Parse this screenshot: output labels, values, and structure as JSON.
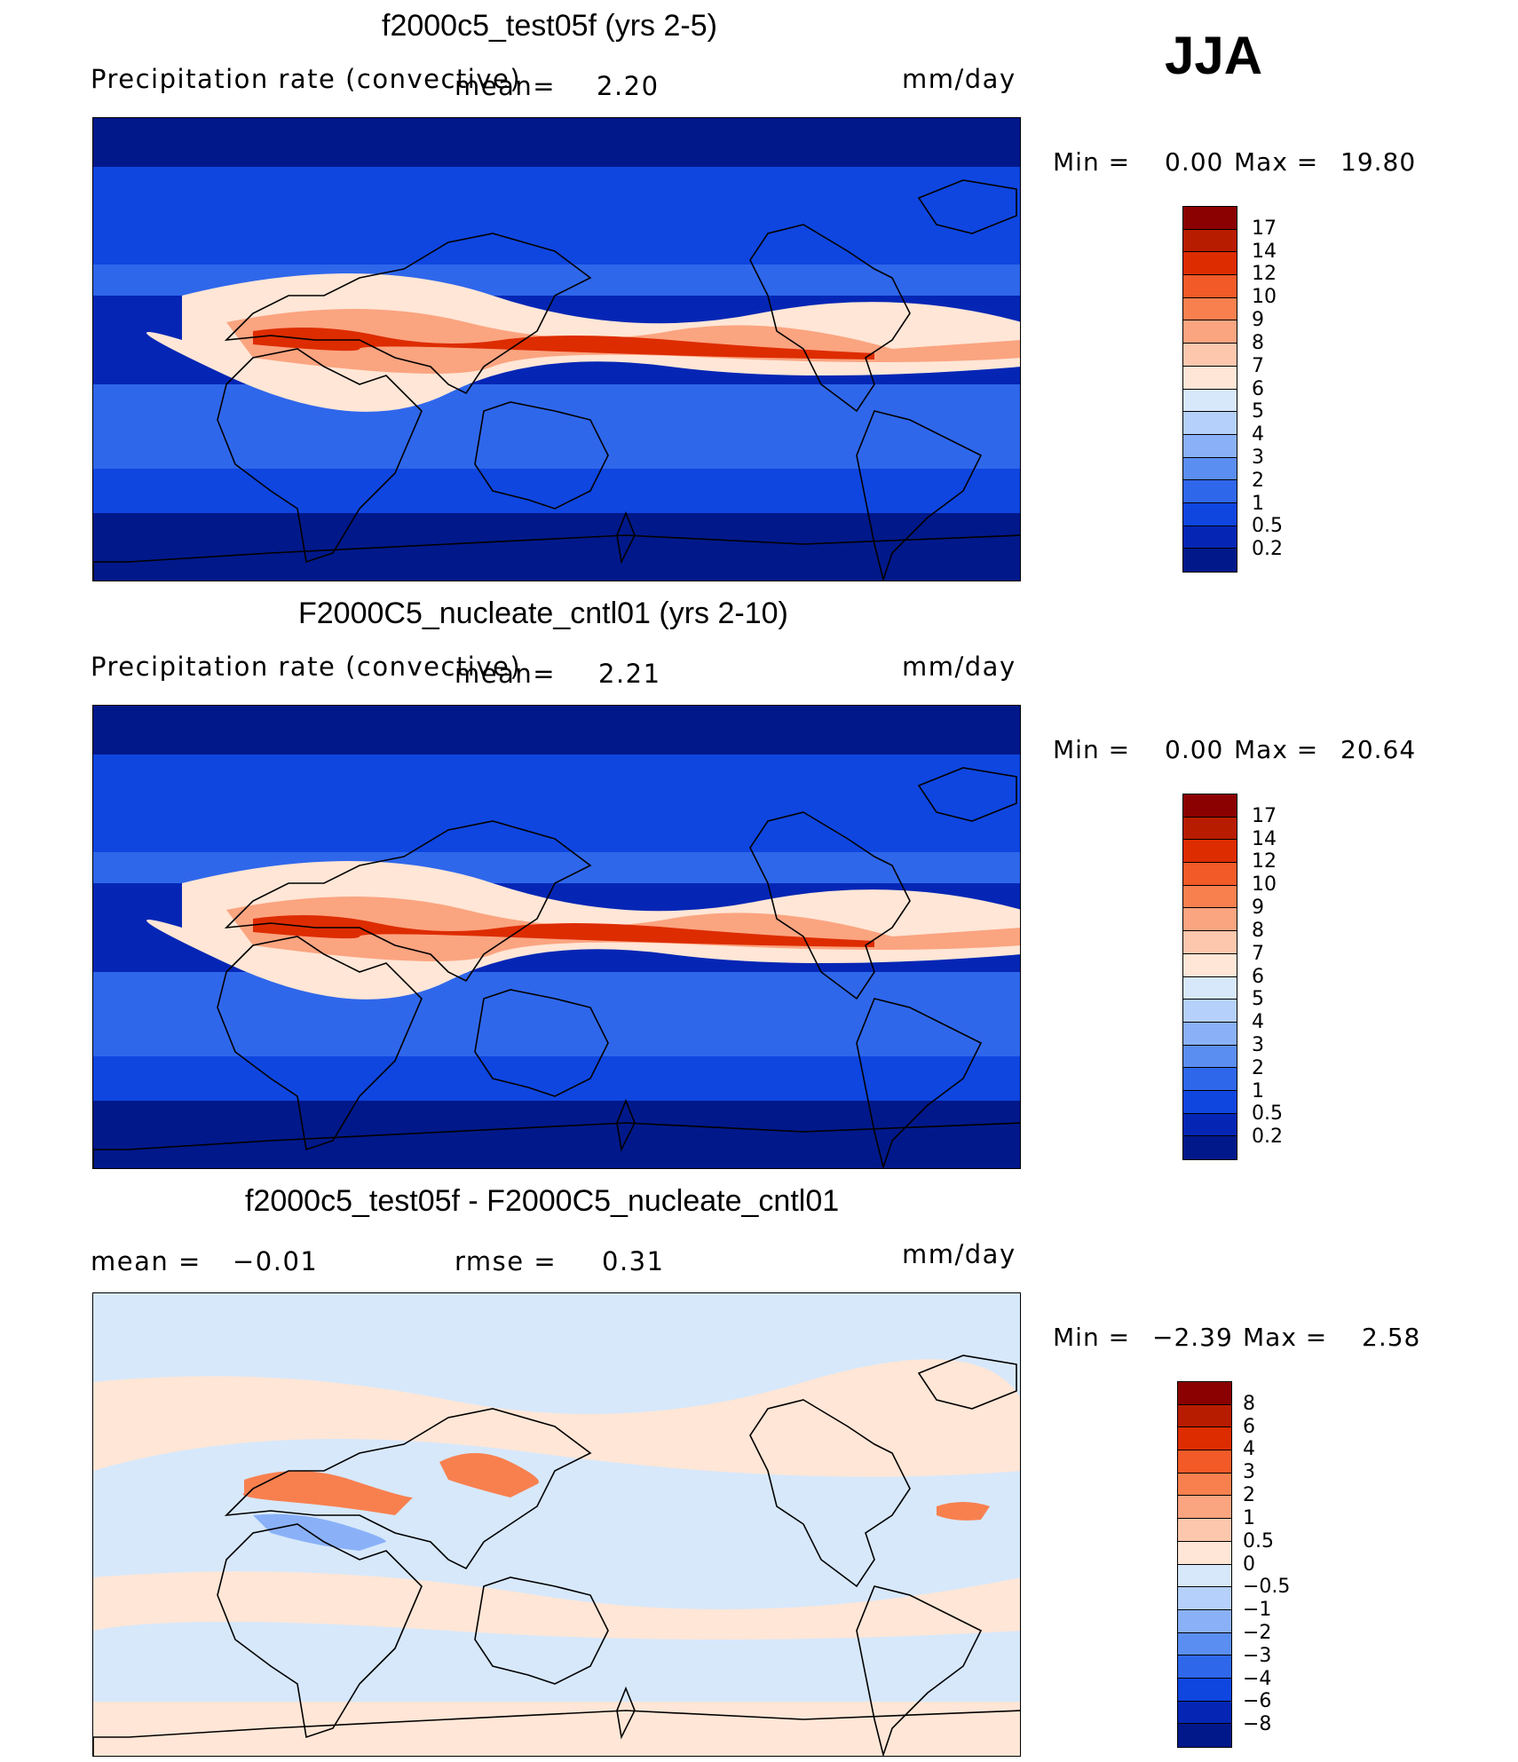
{
  "season": "JJA",
  "panels": [
    {
      "title": "f2000c5_test05f (yrs 2-5)",
      "variable": "Precipitation rate (convective)",
      "mean_label": "mean=",
      "mean_value": "2.20",
      "units": "mm/day",
      "min_label": "Min =",
      "min_value": "0.00",
      "max_label": "Max =",
      "max_value": "19.80",
      "colorbar_labels": [
        "17",
        "14",
        "12",
        "10",
        "9",
        "8",
        "7",
        "6",
        "5",
        "4",
        "3",
        "2",
        "1",
        "0.5",
        "0.2"
      ],
      "colorbar_colors": [
        "#8b0000",
        "#b81c00",
        "#dd2c00",
        "#f25a28",
        "#f8804f",
        "#fba480",
        "#fdc7ae",
        "#ffe6d6",
        "#d7e8fb",
        "#b5d0fa",
        "#8ab1f8",
        "#5b8ef1",
        "#2f67eb",
        "#0f46e0",
        "#0526b5",
        "#01188a"
      ],
      "map_type": "precip"
    },
    {
      "title": "F2000C5_nucleate_cntl01 (yrs 2-10)",
      "variable": "Precipitation rate (convective)",
      "mean_label": "mean=",
      "mean_value": "2.21",
      "units": "mm/day",
      "min_label": "Min =",
      "min_value": "0.00",
      "max_label": "Max =",
      "max_value": "20.64",
      "colorbar_labels": [
        "17",
        "14",
        "12",
        "10",
        "9",
        "8",
        "7",
        "6",
        "5",
        "4",
        "3",
        "2",
        "1",
        "0.5",
        "0.2"
      ],
      "colorbar_colors": [
        "#8b0000",
        "#b81c00",
        "#dd2c00",
        "#f25a28",
        "#f8804f",
        "#fba480",
        "#fdc7ae",
        "#ffe6d6",
        "#d7e8fb",
        "#b5d0fa",
        "#8ab1f8",
        "#5b8ef1",
        "#2f67eb",
        "#0f46e0",
        "#0526b5",
        "#01188a"
      ],
      "map_type": "precip"
    },
    {
      "title": "f2000c5_test05f - F2000C5_nucleate_cntl01",
      "mean_label": "mean =",
      "mean_value": "−0.01",
      "rmse_label": "rmse =",
      "rmse_value": "0.31",
      "units": "mm/day",
      "min_label": "Min =",
      "min_value": "−2.39",
      "max_label": "Max =",
      "max_value": "2.58",
      "colorbar_labels": [
        "8",
        "6",
        "4",
        "3",
        "2",
        "1",
        "0.5",
        "0",
        "−0.5",
        "−1",
        "−2",
        "−3",
        "−4",
        "−6",
        "−8"
      ],
      "colorbar_colors": [
        "#8b0000",
        "#b81c00",
        "#dd2c00",
        "#f25a28",
        "#f8804f",
        "#fba480",
        "#fdc7ae",
        "#ffe6d6",
        "#d7e8fb",
        "#b5d0fa",
        "#8ab1f8",
        "#5b8ef1",
        "#2f67eb",
        "#0f46e0",
        "#0526b5",
        "#01188a"
      ],
      "map_type": "diff"
    }
  ]
}
